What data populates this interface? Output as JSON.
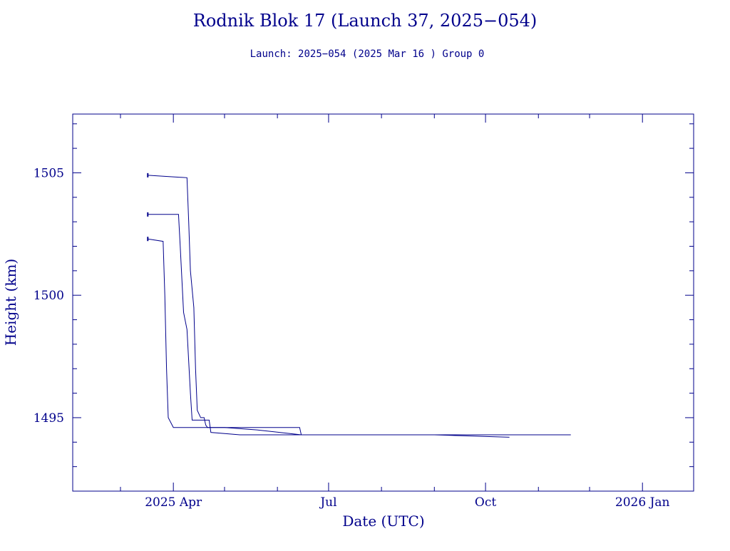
{
  "chart_data": {
    "type": "line",
    "title": "Rodnik Blok 17 (Launch 37, 2025−054)",
    "subtitle": "Launch: 2025−054  (2025 Mar 16 )  Group 0",
    "xlabel": "Date (UTC)",
    "ylabel": "Height (km)",
    "xlim": [
      "2025-02-01",
      "2026-01-31"
    ],
    "ylim": [
      1492,
      1507.4
    ],
    "x_ticks": [
      {
        "date": "2025-04-01",
        "label": "2025 Apr"
      },
      {
        "date": "2025-07-01",
        "label": "Jul"
      },
      {
        "date": "2025-10-01",
        "label": "Oct"
      },
      {
        "date": "2026-01-01",
        "label": "2026 Jan"
      }
    ],
    "y_ticks": [
      1495,
      1500,
      1505
    ],
    "grid": false,
    "color": "#00008b",
    "series": [
      {
        "x": [
          "2025-03-17",
          "2025-03-26",
          "2025-03-27",
          "2025-03-28",
          "2025-03-29",
          "2025-04-01",
          "2025-04-05",
          "2025-05-01",
          "2025-05-20",
          "2025-06-15",
          "2025-09-10",
          "2025-10-15",
          "2025-11-20"
        ],
        "y": [
          1502.3,
          1502.2,
          1500.0,
          1497.0,
          1495.0,
          1494.6,
          1494.6,
          1494.6,
          1494.5,
          1494.3,
          1494.3,
          1494.3,
          1494.3
        ]
      },
      {
        "x": [
          "2025-03-17",
          "2025-04-04",
          "2025-04-05",
          "2025-04-07",
          "2025-04-09",
          "2025-04-11",
          "2025-04-12",
          "2025-04-20",
          "2025-04-22",
          "2025-04-23",
          "2025-05-10",
          "2025-07-01",
          "2025-09-01",
          "2025-10-15"
        ],
        "y": [
          1503.3,
          1503.3,
          1502.0,
          1499.3,
          1498.6,
          1496.0,
          1494.9,
          1494.9,
          1494.9,
          1494.4,
          1494.3,
          1494.3,
          1494.3,
          1494.2
        ]
      },
      {
        "x": [
          "2025-03-17",
          "2025-04-09",
          "2025-04-10",
          "2025-04-11",
          "2025-04-13",
          "2025-04-14",
          "2025-04-15",
          "2025-04-17",
          "2025-04-19",
          "2025-04-20",
          "2025-04-21",
          "2025-04-24",
          "2025-06-01",
          "2025-06-14",
          "2025-06-15"
        ],
        "y": [
          1504.9,
          1504.8,
          1503.0,
          1501.0,
          1499.5,
          1497.0,
          1495.3,
          1495.0,
          1495.0,
          1494.7,
          1494.6,
          1494.6,
          1494.6,
          1494.6,
          1494.3
        ]
      }
    ]
  }
}
